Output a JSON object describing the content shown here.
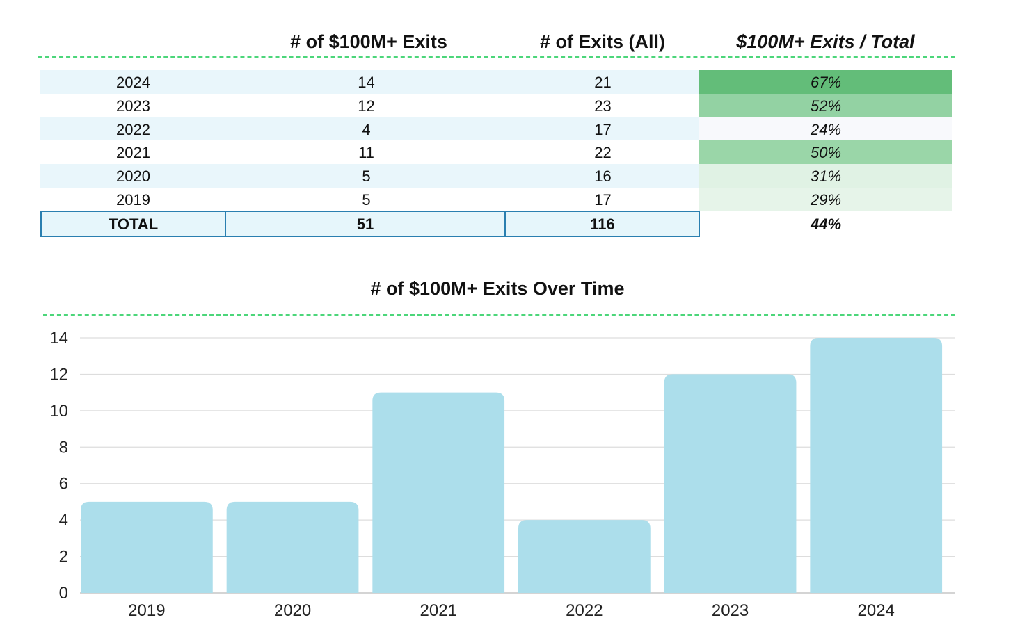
{
  "table": {
    "headers": [
      "# of $100M+ Exits",
      "# of Exits (All)",
      "$100M+ Exits / Total"
    ],
    "rows": [
      {
        "year": "2024",
        "big_exits": "14",
        "all_exits": "21",
        "pct": "67%",
        "pct_color": "#63bd79",
        "row_color": "#e9f6fb"
      },
      {
        "year": "2023",
        "big_exits": "12",
        "all_exits": "23",
        "pct": "52%",
        "pct_color": "#93d2a3",
        "row_color": "#ffffff"
      },
      {
        "year": "2022",
        "big_exits": "4",
        "all_exits": "17",
        "pct": "24%",
        "pct_color": "#f8f9fc",
        "row_color": "#e9f6fb"
      },
      {
        "year": "2021",
        "big_exits": "11",
        "all_exits": "22",
        "pct": "50%",
        "pct_color": "#9ad6a8",
        "row_color": "#ffffff"
      },
      {
        "year": "2020",
        "big_exits": "5",
        "all_exits": "16",
        "pct": "31%",
        "pct_color": "#e0f2e4",
        "row_color": "#e9f6fb"
      },
      {
        "year": "2019",
        "big_exits": "5",
        "all_exits": "17",
        "pct": "29%",
        "pct_color": "#e6f4e9",
        "row_color": "#ffffff"
      }
    ],
    "total": {
      "label": "TOTAL",
      "big_exits": "51",
      "all_exits": "116",
      "pct": "44%"
    }
  },
  "chart_data": {
    "type": "bar",
    "title": "# of $100M+ Exits Over Time",
    "categories": [
      "2019",
      "2020",
      "2021",
      "2022",
      "2023",
      "2024"
    ],
    "values": [
      5,
      5,
      11,
      4,
      12,
      14
    ],
    "ylim": [
      0,
      14
    ],
    "yticks": [
      0,
      2,
      4,
      6,
      8,
      10,
      12,
      14
    ],
    "grid": true,
    "bar_color": "#acdeeb",
    "xlabel": "",
    "ylabel": ""
  },
  "colors": {
    "divider": "#4cd67a",
    "total_border": "#2a7fb0",
    "gridline": "#dddddd"
  }
}
